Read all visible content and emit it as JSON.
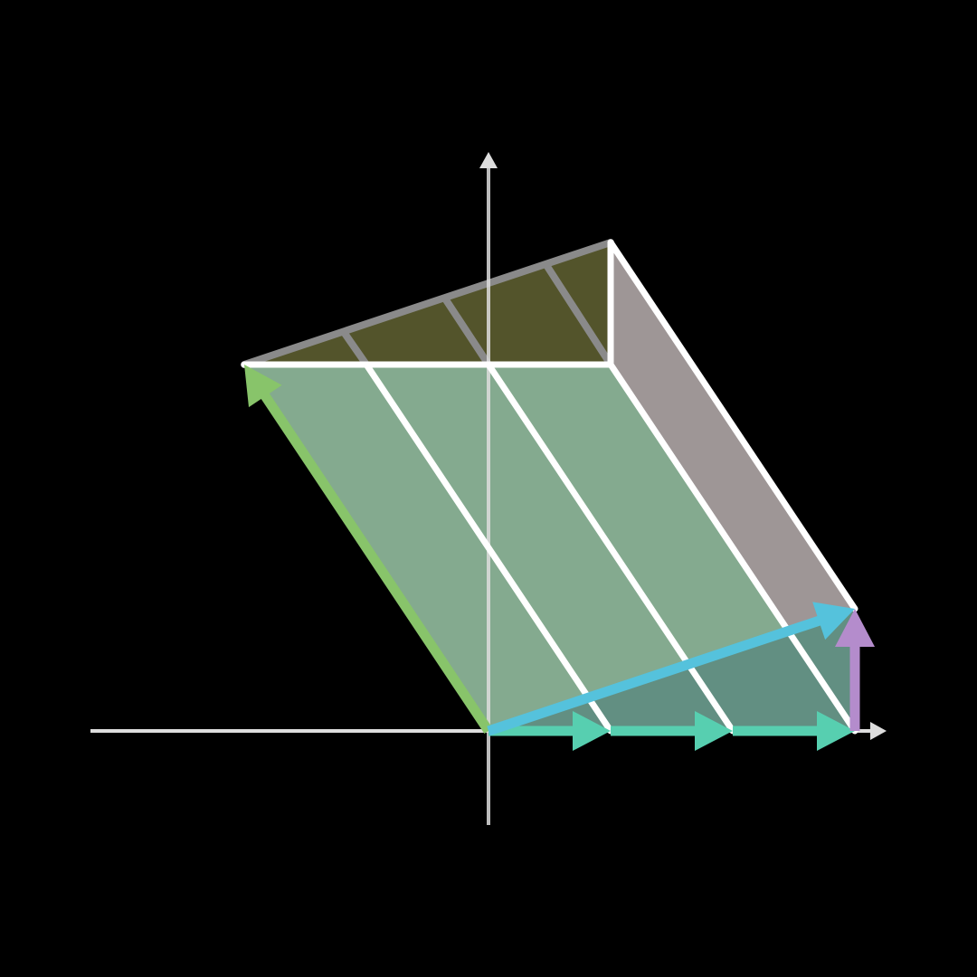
{
  "colors": {
    "background": "#000000",
    "axis": "#dddddd",
    "main_fill": "#84aa8f",
    "lower_fill": "#628f82",
    "top_fill": "#53542b",
    "side_fill": "#9e9696",
    "side_lower_fill": "#877a91",
    "edge": "#ffffff",
    "back_edge": "#8a8a8a",
    "vector_green": "#88c46a",
    "vector_teal": "#57cfb0",
    "vector_blue": "#55c2dc",
    "vector_purple": "#b48ccc"
  },
  "diagram": {
    "vectors": [
      {
        "name": "green-vector",
        "from": [
          0,
          0
        ],
        "to": [
          -2,
          3
        ]
      },
      {
        "name": "teal-vector-1",
        "from": [
          0,
          0
        ],
        "to": [
          1,
          0
        ]
      },
      {
        "name": "teal-vector-2",
        "from": [
          1,
          0
        ],
        "to": [
          2,
          0
        ]
      },
      {
        "name": "teal-vector-3",
        "from": [
          2,
          0
        ],
        "to": [
          3,
          0
        ]
      },
      {
        "name": "blue-vector",
        "from": [
          0,
          0
        ],
        "to": [
          3,
          1
        ]
      },
      {
        "name": "purple-vector",
        "from": [
          3,
          0
        ],
        "to": [
          3,
          1
        ]
      }
    ]
  }
}
